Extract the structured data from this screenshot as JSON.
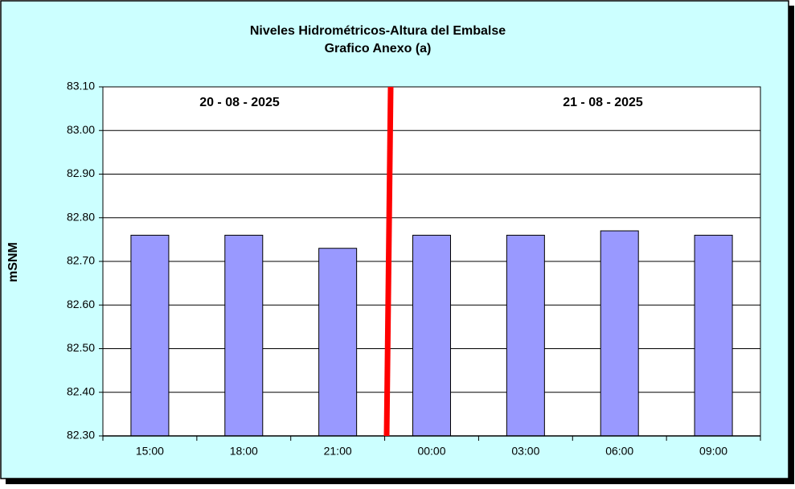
{
  "chart_data": {
    "type": "bar",
    "title": "Niveles Hidrométricos-Altura del Embalse",
    "subtitle": "Grafico Anexo (a)",
    "y_label": "mSNM",
    "annotations": [
      "20 - 08 - 2025",
      "21 - 08 - 2025"
    ],
    "categories": [
      "15:00",
      "18:00",
      "21:00",
      "00:00",
      "03:00",
      "06:00",
      "09:00"
    ],
    "values": [
      82.76,
      82.76,
      82.73,
      82.76,
      82.76,
      82.77,
      82.76
    ],
    "color": "#9999ff",
    "ylim": [
      82.3,
      83.1
    ],
    "yticks": [
      {
        "value": 82.3,
        "label": "82.30"
      },
      {
        "value": 82.4,
        "label": "82.40"
      },
      {
        "value": 82.5,
        "label": "82.50"
      },
      {
        "value": 82.6,
        "label": "82.60"
      },
      {
        "value": 82.7,
        "label": "82.70"
      },
      {
        "value": 82.8,
        "label": "82.80"
      },
      {
        "value": 82.9,
        "label": "82.90"
      },
      {
        "value": 83.0,
        "label": "83.00"
      },
      {
        "value": 83.1,
        "label": "83.10"
      }
    ],
    "grid": true
  }
}
